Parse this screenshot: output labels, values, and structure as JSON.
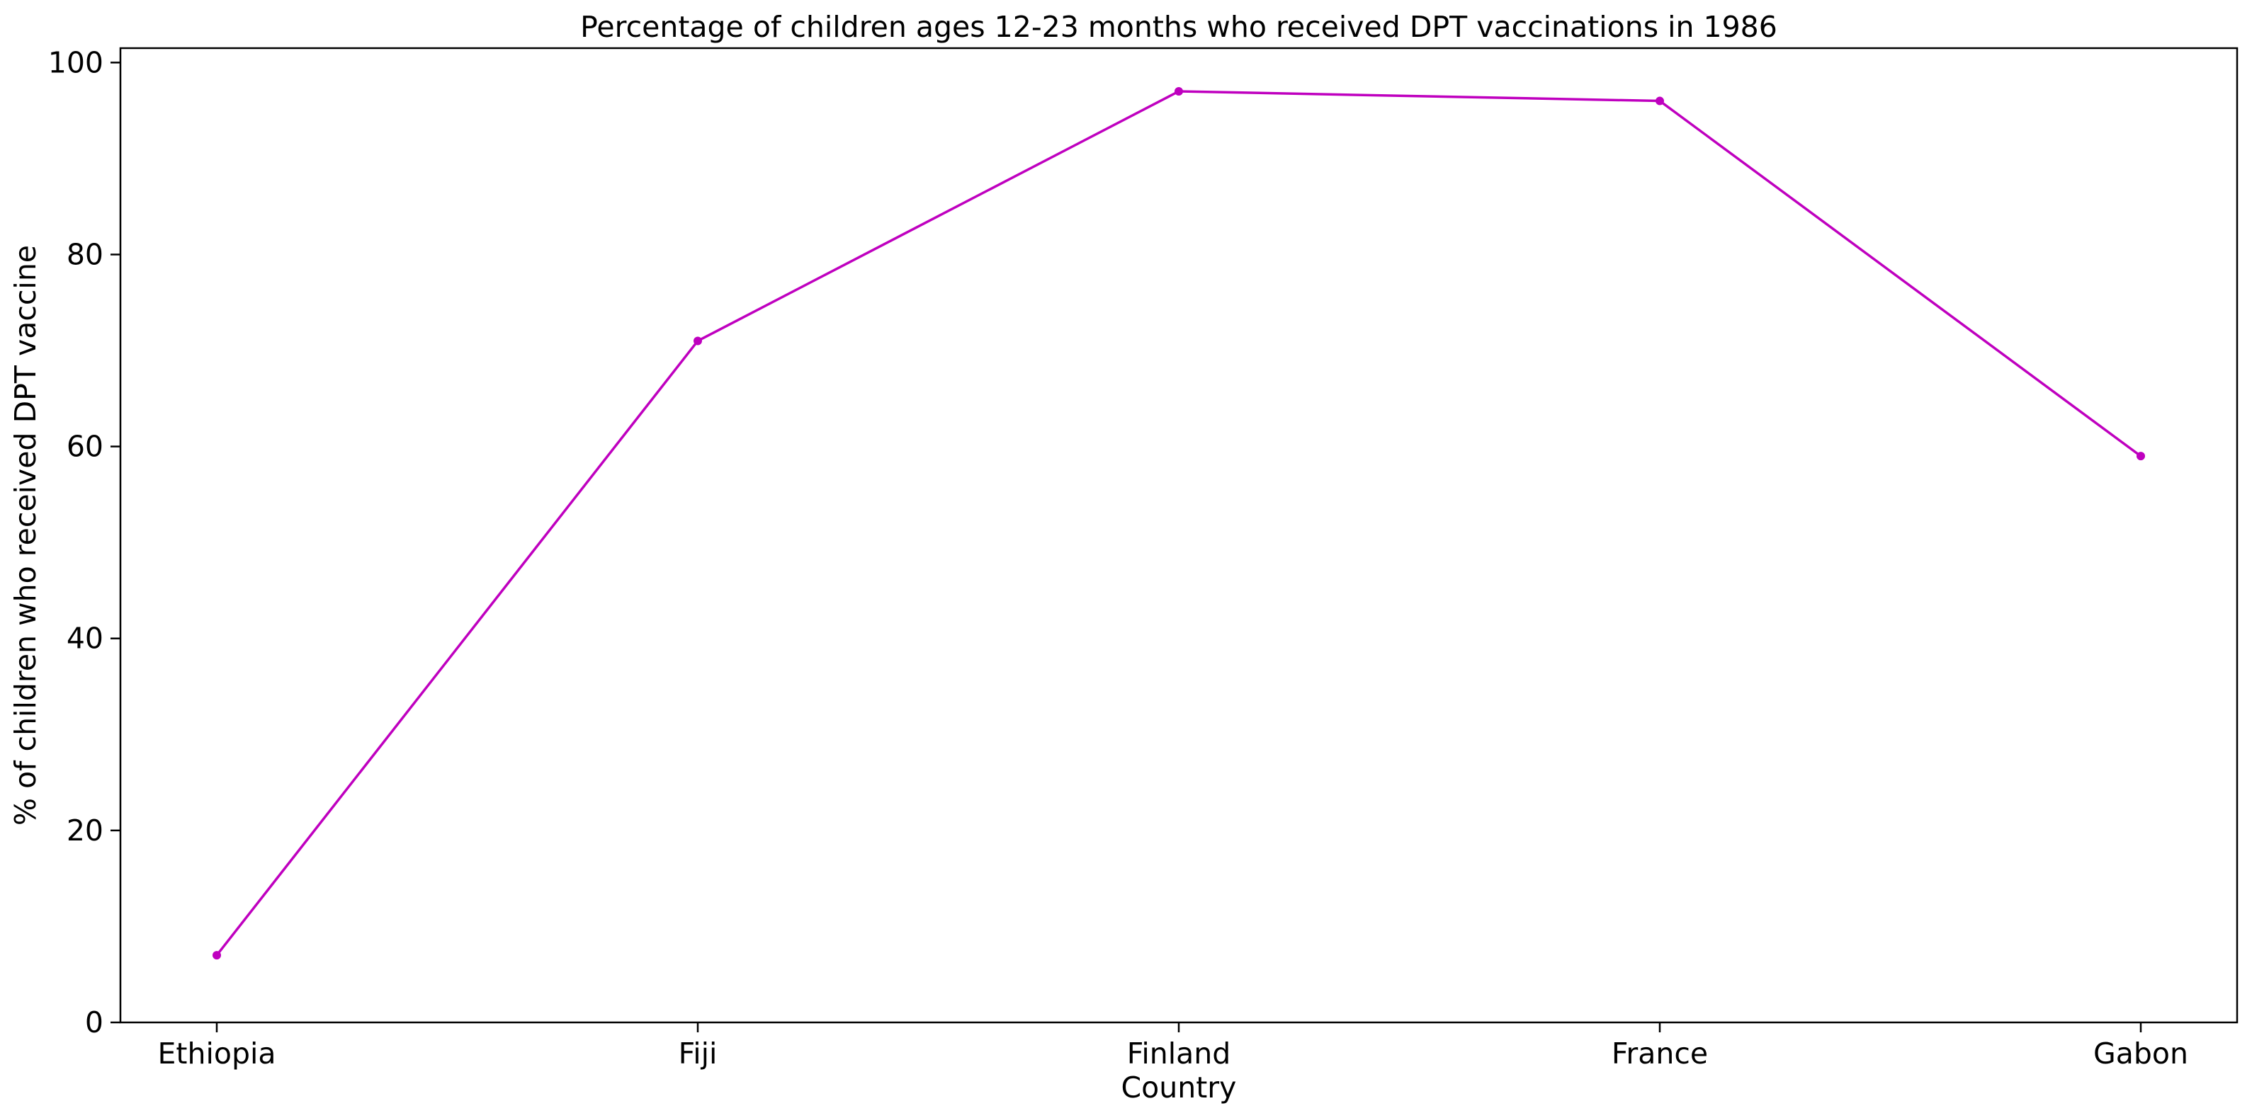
{
  "chart_data": {
    "type": "line",
    "title": "Percentage of children ages 12-23 months who received DPT vaccinations in 1986",
    "xlabel": "Country",
    "ylabel": "% of children who received DPT vaccine",
    "categories": [
      "Ethiopia",
      "Fiji",
      "Finland",
      "France",
      "Gabon"
    ],
    "series": [
      {
        "values": [
          7,
          71,
          97,
          96,
          59
        ],
        "color": "#bf00bf"
      }
    ],
    "ylim": [
      0,
      101.5
    ],
    "yticks": [
      0,
      20,
      40,
      60,
      80,
      100
    ],
    "grid": false,
    "legend": "none"
  }
}
